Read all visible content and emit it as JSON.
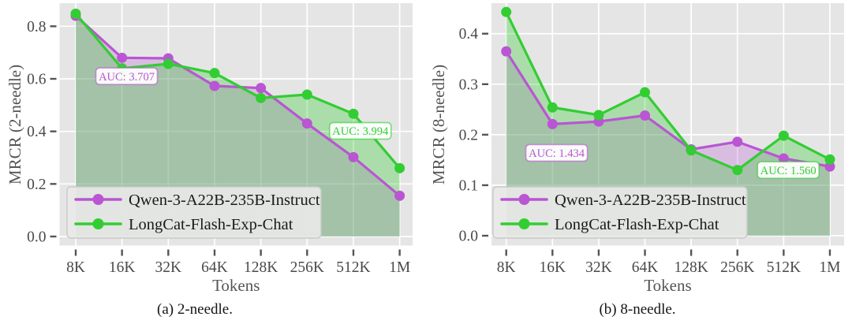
{
  "figure": {
    "colors": {
      "plot_bg": "#e5e5e5",
      "grid": "#ffffff",
      "tick": "#555555",
      "tick_label": "#4a4a4a",
      "axis_label": "#555555",
      "legend_text": "#1a1a1a",
      "legend_bg": "#e9e9e7",
      "legend_border": "#c9c9c9",
      "annotation_bg": "#ffffff",
      "qwen_purple": "#ba55d3",
      "longcat_green": "#32cd32"
    }
  },
  "legend": {
    "entries": [
      {
        "label": "Qwen-3-A22B-235B-Instruct",
        "color": "#ba55d3"
      },
      {
        "label": "LongCat-Flash-Exp-Chat",
        "color": "#32cd32"
      }
    ]
  },
  "chart_data": [
    {
      "type": "area",
      "caption": "(a) 2-needle.",
      "xlabel": "Tokens",
      "ylabel": "MRCR (2-needle)",
      "categories": [
        "8K",
        "16K",
        "32K",
        "64K",
        "128K",
        "256K",
        "512K",
        "1M"
      ],
      "yticks": [
        "0.0",
        "0.2",
        "0.4",
        "0.6",
        "0.8"
      ],
      "ylim": [
        -0.04,
        0.89
      ],
      "grid": true,
      "legend_position": "lower left",
      "series": [
        {
          "name": "Qwen-3-A22B-235B-Instruct",
          "color": "#ba55d3",
          "fill_alpha": 0.28,
          "values": [
            0.84,
            0.68,
            0.678,
            0.573,
            0.565,
            0.43,
            0.302,
            0.155
          ]
        },
        {
          "name": "LongCat-Flash-Exp-Chat",
          "color": "#32cd32",
          "fill_alpha": 0.32,
          "values": [
            0.848,
            0.64,
            0.657,
            0.622,
            0.527,
            0.54,
            0.467,
            0.26
          ]
        }
      ],
      "annotations": [
        {
          "text": "AUC: 3.707",
          "color": "#ba55d3",
          "x_index": 1.1,
          "y_value": 0.61
        },
        {
          "text": "AUC: 3.994",
          "color": "#32cd32",
          "x_index": 6.15,
          "y_value": 0.402
        }
      ]
    },
    {
      "type": "area",
      "caption": "(b) 8-needle.",
      "xlabel": "Tokens",
      "ylabel": "MRCR (8-needle)",
      "categories": [
        "8K",
        "16K",
        "32K",
        "64K",
        "128K",
        "256K",
        "512K",
        "1M"
      ],
      "yticks": [
        "0.0",
        "0.1",
        "0.2",
        "0.3",
        "0.4"
      ],
      "ylim": [
        -0.022,
        0.465
      ],
      "grid": true,
      "legend_position": "lower left",
      "series": [
        {
          "name": "Qwen-3-A22B-235B-Instruct",
          "color": "#ba55d3",
          "fill_alpha": 0.28,
          "values": [
            0.365,
            0.221,
            0.226,
            0.238,
            0.171,
            0.186,
            0.153,
            0.137
          ]
        },
        {
          "name": "LongCat-Flash-Exp-Chat",
          "color": "#32cd32",
          "fill_alpha": 0.32,
          "values": [
            0.443,
            0.254,
            0.239,
            0.284,
            0.169,
            0.13,
            0.198,
            0.151
          ]
        }
      ],
      "annotations": [
        {
          "text": "AUC: 1.434",
          "color": "#ba55d3",
          "x_index": 1.09,
          "y_value": 0.164
        },
        {
          "text": "AUC: 1.560",
          "color": "#32cd32",
          "x_index": 6.1,
          "y_value": 0.13
        }
      ]
    }
  ]
}
